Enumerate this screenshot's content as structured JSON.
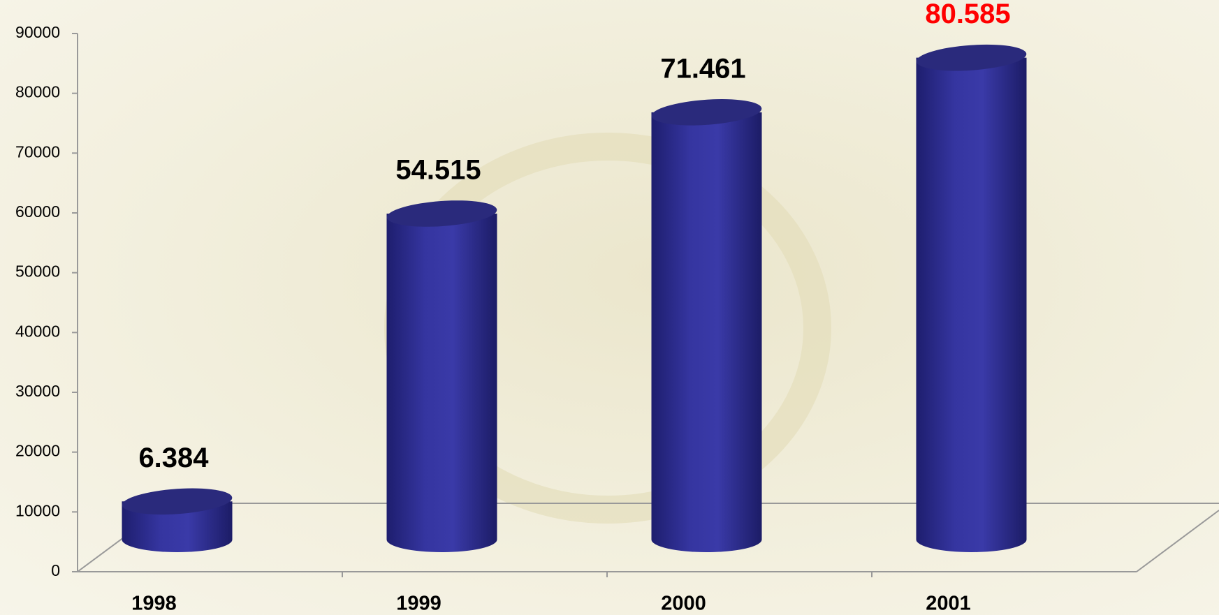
{
  "chart_data": {
    "type": "bar3d",
    "categories": [
      "1998",
      "1999",
      "2000",
      "2001"
    ],
    "values": [
      6384,
      54515,
      71461,
      80585
    ],
    "value_labels": [
      "6.384",
      "54.515",
      "71.461",
      "80.585"
    ],
    "value_label_colors": [
      "#000000",
      "#000000",
      "#000000",
      "#ff0000"
    ],
    "color": "#2e2e96",
    "ylim": [
      0,
      90000
    ],
    "yticks": [
      0,
      10000,
      20000,
      30000,
      40000,
      50000,
      60000,
      70000,
      80000,
      90000
    ]
  }
}
